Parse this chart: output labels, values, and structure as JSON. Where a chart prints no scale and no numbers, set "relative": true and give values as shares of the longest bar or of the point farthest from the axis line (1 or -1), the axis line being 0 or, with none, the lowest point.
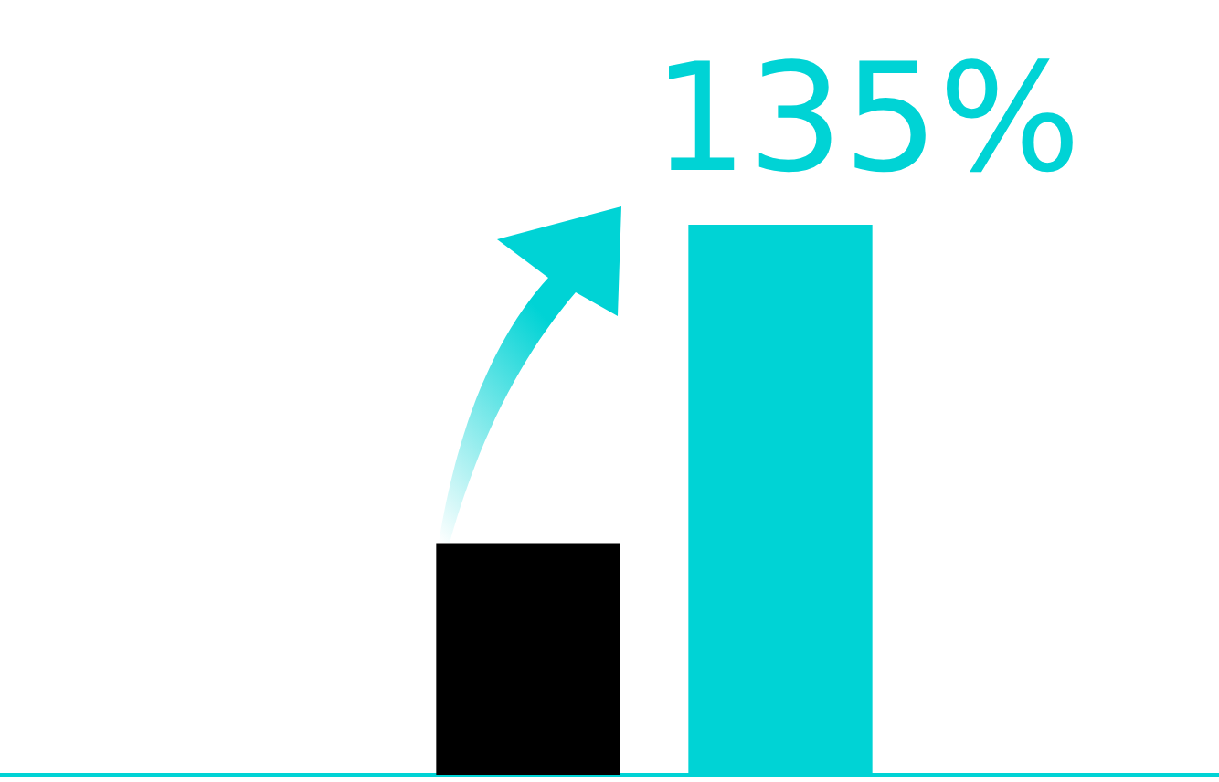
{
  "chart_data": {
    "type": "bar",
    "relative": true,
    "categories": [
      null,
      null
    ],
    "values": [
      0.42,
      1
    ],
    "colors": [
      "#000000",
      "#00d3d5"
    ],
    "annotations": [
      "135%"
    ],
    "legend": false,
    "tick_labels": false
  }
}
